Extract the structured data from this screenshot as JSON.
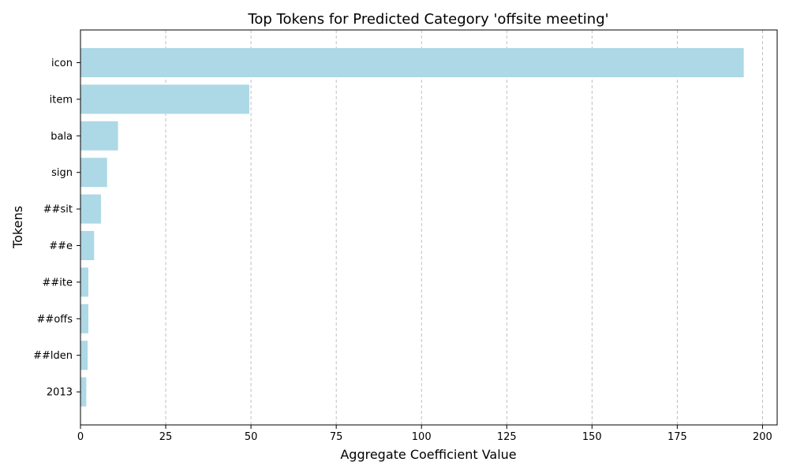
{
  "chart_data": {
    "type": "bar",
    "orientation": "horizontal",
    "title": "Top Tokens for Predicted Category 'offsite meeting'",
    "xlabel": "Aggregate Coefficient Value",
    "ylabel": "Tokens",
    "categories": [
      "icon",
      "item",
      "bala",
      "sign",
      "##sit",
      "##e",
      "##ite",
      "##offs",
      "##lden",
      "2013"
    ],
    "values": [
      194.5,
      49.5,
      11.0,
      7.8,
      6.0,
      4.0,
      2.3,
      2.3,
      2.1,
      1.7
    ],
    "xlim": [
      0,
      204.3
    ],
    "xticks": [
      0,
      25,
      50,
      75,
      100,
      125,
      150,
      175,
      200
    ],
    "grid": "x-dashed",
    "bar_color": "#add8e6"
  }
}
